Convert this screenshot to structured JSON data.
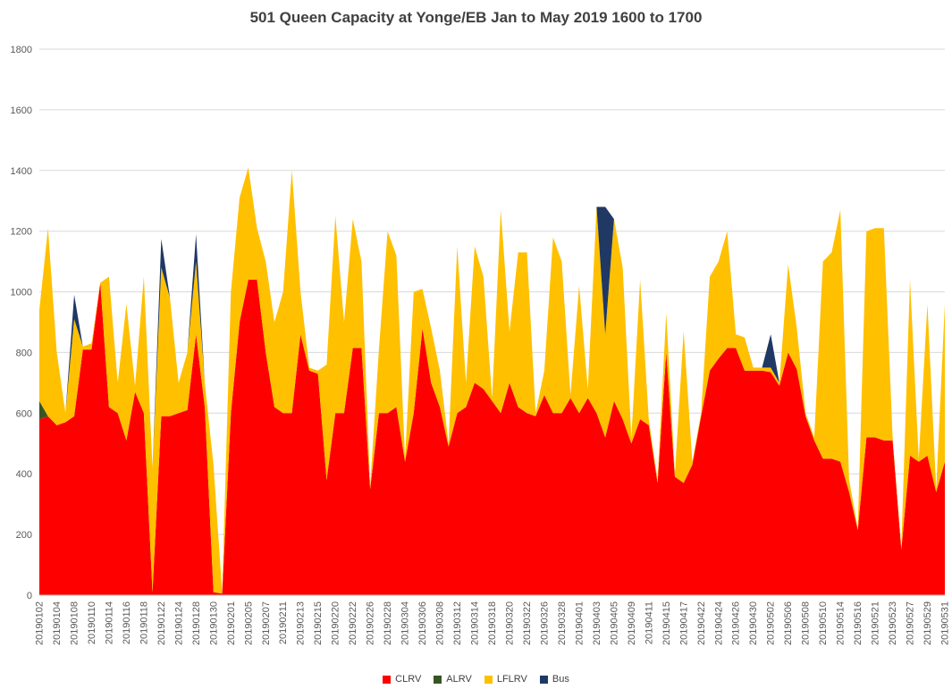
{
  "page": {
    "background": "#ffffff"
  },
  "chart_data": {
    "type": "area",
    "stacked": true,
    "title": "501 Queen Capacity at Yonge/EB Jan to May 2019 1600 to 1700",
    "ylabel": "",
    "xlabel": "",
    "ylim": [
      0,
      1800
    ],
    "ytick_interval": 200,
    "x_label_every": 2,
    "grid": true,
    "legend_position": "bottom",
    "title_color": "#404040",
    "axis_text_color": "#595959",
    "gridline_color": "#d9d9d9",
    "axis_line_color": "#bfbfbf",
    "x": [
      "20190102",
      "20190103",
      "20190104",
      "20190107",
      "20190108",
      "20190109",
      "20190110",
      "20190111",
      "20190114",
      "20190115",
      "20190116",
      "20190117",
      "20190118",
      "20190121",
      "20190122",
      "20190123",
      "20190124",
      "20190125",
      "20190128",
      "20190129",
      "20190130",
      "20190131",
      "20190201",
      "20190204",
      "20190205",
      "20190206",
      "20190207",
      "20190208",
      "20190211",
      "20190212",
      "20190213",
      "20190214",
      "20190215",
      "20190219",
      "20190220",
      "20190221",
      "20190222",
      "20190225",
      "20190226",
      "20190227",
      "20190228",
      "20190301",
      "20190304",
      "20190305",
      "20190306",
      "20190307",
      "20190308",
      "20190311",
      "20190312",
      "20190313",
      "20190314",
      "20190315",
      "20190318",
      "20190319",
      "20190320",
      "20190321",
      "20190322",
      "20190325",
      "20190326",
      "20190327",
      "20190328",
      "20190329",
      "20190401",
      "20190402",
      "20190403",
      "20190404",
      "20190405",
      "20190408",
      "20190409",
      "20190410",
      "20190411",
      "20190412",
      "20190415",
      "20190416",
      "20190417",
      "20190418",
      "20190422",
      "20190423",
      "20190424",
      "20190425",
      "20190426",
      "20190429",
      "20190430",
      "20190501",
      "20190502",
      "20190503",
      "20190506",
      "20190507",
      "20190508",
      "20190509",
      "20190510",
      "20190513",
      "20190514",
      "20190515",
      "20190516",
      "20190517",
      "20190521",
      "20190522",
      "20190523",
      "20190524",
      "20190527",
      "20190528",
      "20190529",
      "20190530",
      "20190531"
    ],
    "series": [
      {
        "name": "CLRV",
        "color": "#FF0000",
        "values": [
          580,
          590,
          560,
          570,
          590,
          810,
          810,
          1030,
          620,
          600,
          510,
          670,
          600,
          10,
          590,
          590,
          600,
          610,
          860,
          620,
          10,
          5,
          600,
          900,
          1040,
          1040,
          800,
          620,
          600,
          600,
          860,
          740,
          730,
          380,
          600,
          600,
          815,
          815,
          350,
          600,
          600,
          620,
          440,
          600,
          880,
          700,
          620,
          490,
          600,
          620,
          700,
          680,
          640,
          600,
          700,
          620,
          600,
          590,
          660,
          600,
          600,
          650,
          600,
          650,
          600,
          520,
          640,
          580,
          500,
          580,
          560,
          370,
          800,
          390,
          370,
          430,
          590,
          740,
          780,
          815,
          815,
          740,
          740,
          740,
          735,
          690,
          800,
          745,
          590,
          510,
          450,
          450,
          440,
          340,
          215,
          520,
          520,
          510,
          510,
          150,
          460,
          440,
          460,
          340,
          440
        ]
      },
      {
        "name": "ALRV",
        "color": "#375623",
        "values": [
          60,
          0,
          0,
          0,
          0,
          0,
          0,
          0,
          0,
          0,
          0,
          0,
          0,
          0,
          0,
          0,
          0,
          0,
          0,
          0,
          0,
          0,
          0,
          0,
          0,
          0,
          0,
          0,
          0,
          0,
          0,
          0,
          0,
          0,
          0,
          0,
          0,
          0,
          0,
          0,
          0,
          0,
          0,
          0,
          0,
          0,
          0,
          0,
          0,
          0,
          0,
          0,
          0,
          0,
          0,
          0,
          0,
          0,
          0,
          0,
          0,
          0,
          0,
          0,
          0,
          0,
          0,
          0,
          0,
          0,
          0,
          0,
          0,
          0,
          0,
          0,
          0,
          0,
          0,
          0,
          0,
          0,
          0,
          0,
          0,
          0,
          0,
          0,
          0,
          0,
          0,
          0,
          0,
          0,
          0,
          0,
          0,
          0,
          0,
          0,
          0,
          0,
          0,
          0,
          0
        ]
      },
      {
        "name": "LFLRV",
        "color": "#FFC000",
        "values": [
          300,
          620,
          240,
          30,
          320,
          10,
          20,
          0,
          430,
          100,
          450,
          20,
          450,
          410,
          490,
          390,
          100,
          190,
          240,
          80,
          420,
          5,
          400,
          410,
          370,
          170,
          300,
          280,
          400,
          800,
          140,
          10,
          10,
          380,
          650,
          300,
          425,
          285,
          10,
          210,
          600,
          500,
          10,
          400,
          130,
          180,
          120,
          10,
          550,
          80,
          450,
          370,
          10,
          670,
          170,
          510,
          530,
          10,
          80,
          580,
          500,
          10,
          420,
          30,
          680,
          340,
          600,
          500,
          20,
          460,
          20,
          10,
          130,
          10,
          500,
          10,
          10,
          310,
          320,
          385,
          45,
          110,
          10,
          10,
          15,
          10,
          290,
          135,
          10,
          10,
          650,
          680,
          830,
          40,
          5,
          680,
          690,
          700,
          10,
          10,
          580,
          10,
          500,
          10,
          520
        ]
      },
      {
        "name": "Bus",
        "color": "#1F3864",
        "values": [
          0,
          0,
          0,
          0,
          80,
          0,
          0,
          0,
          0,
          0,
          0,
          0,
          0,
          0,
          95,
          0,
          0,
          0,
          90,
          0,
          0,
          0,
          0,
          0,
          0,
          0,
          0,
          0,
          0,
          0,
          0,
          0,
          0,
          0,
          0,
          0,
          0,
          0,
          0,
          0,
          0,
          0,
          0,
          0,
          0,
          0,
          0,
          0,
          0,
          0,
          0,
          0,
          0,
          0,
          0,
          0,
          0,
          0,
          0,
          0,
          0,
          0,
          0,
          0,
          0,
          420,
          0,
          0,
          0,
          0,
          0,
          0,
          0,
          0,
          0,
          0,
          0,
          0,
          0,
          0,
          0,
          0,
          0,
          0,
          110,
          0,
          0,
          0,
          0,
          0,
          0,
          0,
          0,
          0,
          0,
          0,
          0,
          0,
          0,
          0,
          0,
          0,
          0,
          0,
          0
        ]
      }
    ]
  },
  "legend": {
    "items": [
      {
        "label": "CLRV"
      },
      {
        "label": "ALRV"
      },
      {
        "label": "LFLRV"
      },
      {
        "label": "Bus"
      }
    ]
  }
}
